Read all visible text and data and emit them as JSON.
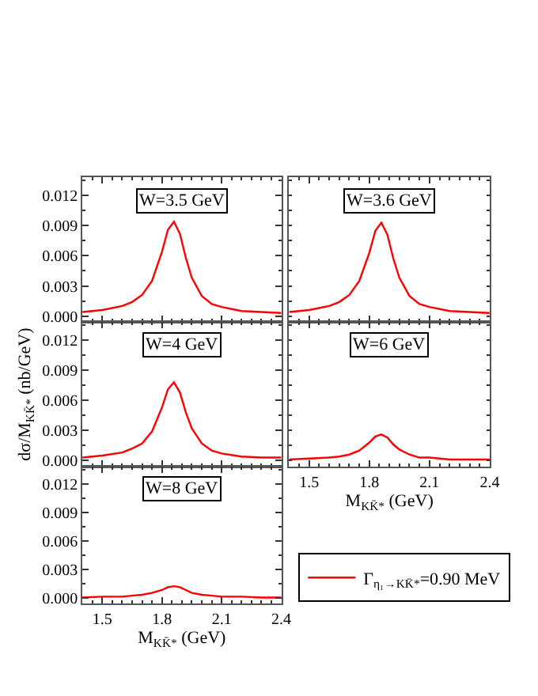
{
  "chart_data": [
    {
      "type": "line",
      "title": "W=3.5 GeV",
      "x": [
        1.4,
        1.5,
        1.6,
        1.65,
        1.7,
        1.75,
        1.8,
        1.83,
        1.86,
        1.89,
        1.92,
        1.95,
        2.0,
        2.05,
        2.1,
        2.2,
        2.3,
        2.4
      ],
      "xlim": [
        1.4,
        2.4
      ],
      "xticks": [
        1.5,
        1.8,
        2.1,
        2.4
      ],
      "ylim": [
        -0.0006,
        0.0138
      ],
      "yticks": [
        {
          "value": 0,
          "label": "0.000"
        },
        {
          "value": 0.003,
          "label": "0.003"
        },
        {
          "value": 0.006,
          "label": "0.006"
        },
        {
          "value": 0.009,
          "label": "0.009"
        },
        {
          "value": 0.012,
          "label": "0.012"
        }
      ],
      "tick_labels": "y",
      "marker": "none",
      "line_style": "solid",
      "series": [
        {
          "color": "#ff0000",
          "values": [
            0.0004,
            0.0006,
            0.001,
            0.0014,
            0.0021,
            0.0035,
            0.0064,
            0.0086,
            0.0094,
            0.0082,
            0.0058,
            0.0038,
            0.002,
            0.0012,
            0.0009,
            0.0005,
            0.0004,
            0.0003
          ]
        }
      ]
    },
    {
      "type": "line",
      "title": "W=3.6 GeV",
      "x": [
        1.4,
        1.5,
        1.6,
        1.65,
        1.7,
        1.75,
        1.8,
        1.83,
        1.86,
        1.89,
        1.92,
        1.95,
        2.0,
        2.05,
        2.1,
        2.2,
        2.3,
        2.4
      ],
      "xlim": [
        1.4,
        2.4
      ],
      "xticks": [
        1.5,
        1.8,
        2.1,
        2.4
      ],
      "ylim": [
        -0.0006,
        0.0138
      ],
      "yticks": [
        {
          "value": 0,
          "label": null
        },
        {
          "value": 0.003,
          "label": null
        },
        {
          "value": 0.006,
          "label": null
        },
        {
          "value": 0.009,
          "label": null
        },
        {
          "value": 0.012,
          "label": null
        }
      ],
      "tick_labels": false,
      "marker": "none",
      "line_style": "solid",
      "series": [
        {
          "color": "#ff0000",
          "values": [
            0.0004,
            0.0006,
            0.001,
            0.0014,
            0.0021,
            0.0035,
            0.0063,
            0.0085,
            0.0093,
            0.0081,
            0.0057,
            0.0038,
            0.002,
            0.0012,
            0.0009,
            0.0005,
            0.0004,
            0.0003
          ]
        }
      ]
    },
    {
      "type": "line",
      "title": "W=4 GeV",
      "ylabel": "dσ/M$_{KK̄*}$ (nb/GeV)",
      "x": [
        1.4,
        1.5,
        1.6,
        1.65,
        1.7,
        1.75,
        1.8,
        1.83,
        1.86,
        1.89,
        1.92,
        1.95,
        2.0,
        2.05,
        2.1,
        2.2,
        2.3,
        2.4
      ],
      "xlim": [
        1.4,
        2.4
      ],
      "xticks": [
        1.5,
        1.8,
        2.1,
        2.4
      ],
      "ylim": [
        -0.0006,
        0.0138
      ],
      "yticks": [
        {
          "value": 0,
          "label": "0.000"
        },
        {
          "value": 0.003,
          "label": "0.003"
        },
        {
          "value": 0.006,
          "label": "0.006"
        },
        {
          "value": 0.009,
          "label": "0.009"
        },
        {
          "value": 0.012,
          "label": "0.012"
        }
      ],
      "tick_labels": "y",
      "marker": "none",
      "line_style": "solid",
      "series": [
        {
          "color": "#ff0000",
          "values": [
            0.0003,
            0.0005,
            0.0008,
            0.0012,
            0.0017,
            0.0029,
            0.0053,
            0.0071,
            0.0078,
            0.0068,
            0.0048,
            0.0032,
            0.0017,
            0.001,
            0.0007,
            0.0004,
            0.0003,
            0.0003
          ]
        }
      ]
    },
    {
      "type": "line",
      "title": "W=6 GeV",
      "xlabel": "M$_{KK̄*}$ (GeV)",
      "x": [
        1.4,
        1.5,
        1.6,
        1.65,
        1.7,
        1.75,
        1.8,
        1.83,
        1.86,
        1.89,
        1.92,
        1.95,
        2.0,
        2.05,
        2.1,
        2.2,
        2.3,
        2.4
      ],
      "xlim": [
        1.4,
        2.4
      ],
      "xticks": [
        1.5,
        1.8,
        2.1,
        2.4
      ],
      "ylim": [
        -0.0006,
        0.0138
      ],
      "yticks": [
        {
          "value": 0,
          "label": null
        },
        {
          "value": 0.003,
          "label": null
        },
        {
          "value": 0.006,
          "label": null
        },
        {
          "value": 0.009,
          "label": null
        },
        {
          "value": 0.012,
          "label": null
        }
      ],
      "tick_labels": "x",
      "marker": "none",
      "line_style": "solid",
      "series": [
        {
          "color": "#ff0000",
          "values": [
            0.0001,
            0.0002,
            0.0003,
            0.0004,
            0.0006,
            0.001,
            0.0018,
            0.0024,
            0.0026,
            0.0023,
            0.0016,
            0.0011,
            0.0006,
            0.0003,
            0.0003,
            0.0001,
            0.0001,
            0.0001
          ]
        }
      ]
    },
    {
      "type": "line",
      "title": "W=8 GeV",
      "xlabel": "M$_{KK̄*}$ (GeV)",
      "x": [
        1.4,
        1.5,
        1.6,
        1.65,
        1.7,
        1.75,
        1.8,
        1.83,
        1.86,
        1.89,
        1.92,
        1.95,
        2.0,
        2.05,
        2.1,
        2.2,
        2.3,
        2.4
      ],
      "xlim": [
        1.4,
        2.4
      ],
      "xticks": [
        1.5,
        1.8,
        2.1,
        2.4
      ],
      "ylim": [
        -0.0006,
        0.0138
      ],
      "yticks": [
        {
          "value": 0,
          "label": "0.000"
        },
        {
          "value": 0.003,
          "label": "0.003"
        },
        {
          "value": 0.006,
          "label": "0.006"
        },
        {
          "value": 0.009,
          "label": "0.009"
        },
        {
          "value": 0.012,
          "label": "0.012"
        }
      ],
      "marker": "none",
      "line_style": "solid",
      "legend": "right",
      "series": [
        {
          "name": "Γ$_{η₁→KK̄*}$=0.90 MeV",
          "color": "#ff0000",
          "values": [
            0.0,
            0.0001,
            0.0001,
            0.0002,
            0.0003,
            0.0005,
            0.0008,
            0.0011,
            0.0012,
            0.0011,
            0.0008,
            0.0005,
            0.0003,
            0.0002,
            0.0001,
            0.0001,
            0.0,
            0.0
          ]
        }
      ]
    }
  ]
}
